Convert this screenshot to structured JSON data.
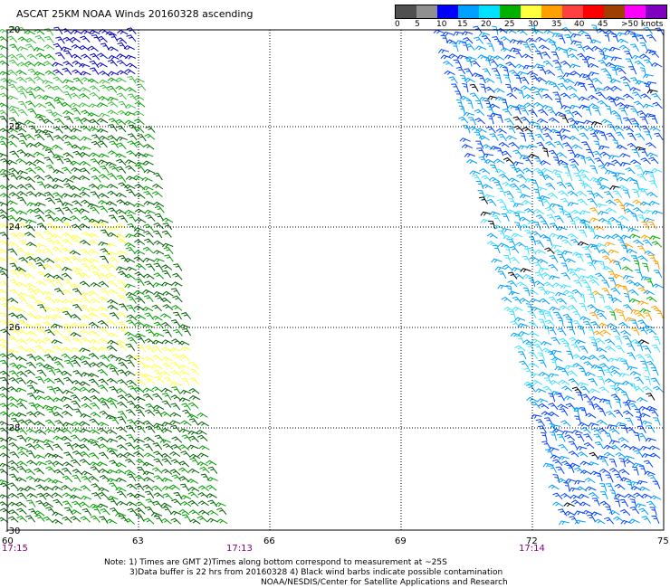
{
  "title": "ASCAT 25KM NOAA Winds 20160328 ascending",
  "colorbar": {
    "labels": [
      "0",
      "5",
      "10",
      "15",
      "20",
      "25",
      "30",
      "35",
      "40",
      "45",
      ">50 knots"
    ],
    "colors": [
      "#505050",
      "#909090",
      "#0000ff",
      "#00a0ff",
      "#00e0ff",
      "#00b000",
      "#ffff40",
      "#ffa000",
      "#ff4040",
      "#ff0000",
      "#a04000",
      "#ff00ff",
      "#8000c0"
    ]
  },
  "axes": {
    "y_labels": [
      "-20",
      "-22",
      "-24",
      "-26",
      "-28",
      "-30"
    ],
    "x_labels": [
      "60",
      "63",
      "66",
      "69",
      "72",
      "75"
    ]
  },
  "pass_times": [
    "17:15",
    "17:13",
    "17:14"
  ],
  "notes": {
    "line1": "Note: 1) Times are GMT 2)Times along bottom correspond to measurement at ~25S",
    "line2": "3)Data buffer is 22 hrs from 20160328 4) Black wind barbs indicate possible contamination",
    "line3": "NOAA/NESDIS/Center for Satellite Applications and Research"
  },
  "swaths": [
    {
      "name": "west-swath",
      "colors": [
        "#00a000",
        "#40c040",
        "#0000c0",
        "#ffff40",
        "#006000"
      ]
    },
    {
      "name": "east-swath",
      "colors": [
        "#0040ff",
        "#00a0ff",
        "#40e0ff",
        "#000000",
        "#ffa000",
        "#00b000"
      ]
    }
  ]
}
